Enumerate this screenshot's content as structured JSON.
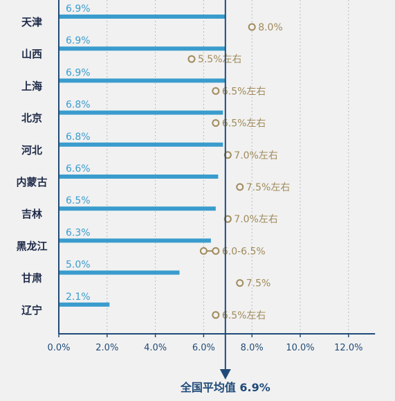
{
  "chart_data": {
    "type": "bar",
    "orientation": "horizontal",
    "categories": [
      "天津",
      "山西",
      "上海",
      "北京",
      "河北",
      "内蒙古",
      "吉林",
      "黑龙江",
      "甘肃",
      "辽宁"
    ],
    "series": [
      {
        "values": [
          6.9,
          6.9,
          6.9,
          6.8,
          6.8,
          6.6,
          6.5,
          6.3,
          5.0,
          2.1
        ],
        "labels": [
          "6.9%",
          "6.9%",
          "6.9%",
          "6.8%",
          "6.8%",
          "6.6%",
          "6.5%",
          "6.3%",
          "5.0%",
          "2.1%"
        ]
      }
    ],
    "targets": [
      {
        "min": 8.0,
        "max": 8.0,
        "label": "8.0%"
      },
      {
        "min": 5.5,
        "max": 5.5,
        "label": "5.5%左右"
      },
      {
        "min": 6.5,
        "max": 6.5,
        "label": "6.5%左右"
      },
      {
        "min": 6.5,
        "max": 6.5,
        "label": "6.5%左右"
      },
      {
        "min": 7.0,
        "max": 7.0,
        "label": "7.0%左右"
      },
      {
        "min": 7.5,
        "max": 7.5,
        "label": "7.5%左右"
      },
      {
        "min": 7.0,
        "max": 7.0,
        "label": "7.0%左右"
      },
      {
        "min": 6.0,
        "max": 6.5,
        "label": "6.0-6.5%"
      },
      {
        "min": 7.5,
        "max": 7.5,
        "label": "7.5%"
      },
      {
        "min": 6.5,
        "max": 6.5,
        "label": "6.5%左右"
      }
    ],
    "x_ticks": [
      "0.0%",
      "2.0%",
      "4.0%",
      "6.0%",
      "8.0%",
      "10.0%",
      "12.0%"
    ],
    "xlim": [
      0,
      13
    ],
    "grid": true,
    "national_average": {
      "value": 6.9,
      "label": "全国平均值 6.9%"
    },
    "colors": {
      "bar": "#3a9ccd",
      "target": "#a08a5a",
      "axis": "#1f4a78",
      "text": "#1e2a48"
    }
  }
}
